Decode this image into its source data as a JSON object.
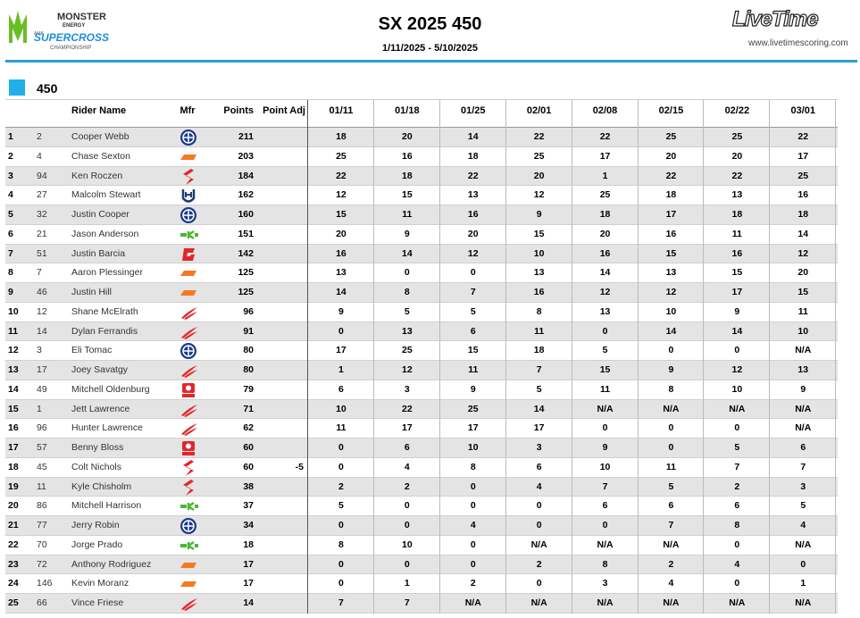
{
  "header": {
    "logo": {
      "brand": "MONSTER",
      "sub": "ENERGY",
      "ama": "AMA",
      "series": "SUPERCROSS",
      "champ": "CHAMPIONSHIP"
    },
    "title": "SX 2025 450",
    "dates": "1/11/2025 - 5/10/2025",
    "provider": "LiveTime",
    "url": "www.livetimescoring.com"
  },
  "class_name": "450",
  "table": {
    "columns": [
      "Rider Name",
      "Mfr",
      "Points",
      "Point Adj",
      "01/11",
      "01/18",
      "01/25",
      "02/01",
      "02/08",
      "02/15",
      "02/22",
      "03/01"
    ],
    "rows": [
      {
        "pos": 1,
        "num": 2,
        "name": "Cooper Webb",
        "points": 211,
        "results": [
          18,
          20,
          14,
          22,
          22,
          25,
          25,
          22
        ]
      },
      {
        "pos": 2,
        "num": 4,
        "name": "Chase Sexton",
        "points": 203,
        "results": [
          25,
          16,
          18,
          25,
          17,
          20,
          20,
          17
        ]
      },
      {
        "pos": 3,
        "num": 94,
        "name": "Ken Roczen",
        "points": 184,
        "results": [
          22,
          18,
          22,
          20,
          1,
          22,
          22,
          25
        ]
      },
      {
        "pos": 4,
        "num": 27,
        "name": "Malcolm Stewart",
        "points": 162,
        "results": [
          12,
          15,
          13,
          12,
          25,
          18,
          13,
          16
        ]
      },
      {
        "pos": 5,
        "num": 32,
        "name": "Justin Cooper",
        "points": 160,
        "results": [
          15,
          11,
          16,
          9,
          18,
          17,
          18,
          18
        ]
      },
      {
        "pos": 6,
        "num": 21,
        "name": "Jason Anderson",
        "points": 151,
        "results": [
          20,
          9,
          20,
          15,
          20,
          16,
          11,
          14
        ]
      },
      {
        "pos": 7,
        "num": 51,
        "name": "Justin Barcia",
        "points": 142,
        "results": [
          16,
          14,
          12,
          10,
          16,
          15,
          16,
          12
        ]
      },
      {
        "pos": 8,
        "num": 7,
        "name": "Aaron Plessinger",
        "points": 125,
        "results": [
          13,
          0,
          0,
          13,
          14,
          13,
          15,
          20
        ]
      },
      {
        "pos": 9,
        "num": 46,
        "name": "Justin Hill",
        "points": 125,
        "results": [
          14,
          8,
          7,
          16,
          12,
          12,
          17,
          15
        ]
      },
      {
        "pos": 10,
        "num": 12,
        "name": "Shane McElrath",
        "points": 96,
        "results": [
          9,
          5,
          5,
          8,
          13,
          10,
          9,
          11
        ]
      },
      {
        "pos": 11,
        "num": 14,
        "name": "Dylan Ferrandis",
        "points": 91,
        "results": [
          0,
          13,
          6,
          11,
          0,
          14,
          14,
          10
        ]
      },
      {
        "pos": 12,
        "num": 3,
        "name": "Eli Tomac",
        "points": 80,
        "results": [
          17,
          25,
          15,
          18,
          5,
          0,
          0,
          "N/A"
        ]
      },
      {
        "pos": 13,
        "num": 17,
        "name": "Joey Savatgy",
        "points": 80,
        "results": [
          1,
          12,
          11,
          7,
          15,
          9,
          12,
          13
        ]
      },
      {
        "pos": 14,
        "num": 49,
        "name": "Mitchell Oldenburg",
        "points": 79,
        "results": [
          6,
          3,
          9,
          5,
          11,
          8,
          10,
          9
        ]
      },
      {
        "pos": 15,
        "num": 1,
        "name": "Jett Lawrence",
        "points": 71,
        "results": [
          10,
          22,
          25,
          14,
          "N/A",
          "N/A",
          "N/A",
          "N/A"
        ]
      },
      {
        "pos": 16,
        "num": 96,
        "name": "Hunter Lawrence",
        "points": 62,
        "results": [
          11,
          17,
          17,
          17,
          0,
          0,
          0,
          "N/A"
        ]
      },
      {
        "pos": 17,
        "num": 57,
        "name": "Benny Bloss",
        "points": 60,
        "results": [
          0,
          6,
          10,
          3,
          9,
          0,
          5,
          6
        ]
      },
      {
        "pos": 18,
        "num": 45,
        "name": "Colt Nichols",
        "points": 60,
        "adj": -5,
        "results": [
          0,
          4,
          8,
          6,
          10,
          11,
          7,
          7
        ]
      },
      {
        "pos": 19,
        "num": 11,
        "name": "Kyle Chisholm",
        "points": 38,
        "results": [
          2,
          2,
          0,
          4,
          7,
          5,
          2,
          3
        ]
      },
      {
        "pos": 20,
        "num": 86,
        "name": "Mitchell Harrison",
        "points": 37,
        "results": [
          5,
          0,
          0,
          0,
          6,
          6,
          6,
          5
        ]
      },
      {
        "pos": 21,
        "num": 77,
        "name": "Jerry Robin",
        "points": 34,
        "results": [
          0,
          0,
          4,
          0,
          0,
          7,
          8,
          4
        ]
      },
      {
        "pos": 22,
        "num": 70,
        "name": "Jorge Prado",
        "points": 18,
        "results": [
          8,
          10,
          0,
          "N/A",
          "N/A",
          "N/A",
          0,
          "N/A"
        ]
      },
      {
        "pos": 23,
        "num": 72,
        "name": "Anthony Rodriguez",
        "points": 17,
        "results": [
          0,
          0,
          0,
          2,
          8,
          2,
          4,
          0
        ]
      },
      {
        "pos": 24,
        "num": 146,
        "name": "Kevin Moranz",
        "points": 17,
        "results": [
          0,
          1,
          2,
          0,
          3,
          4,
          0,
          1
        ]
      },
      {
        "pos": 25,
        "num": 66,
        "name": "Vince Friese",
        "points": 14,
        "results": [
          7,
          7,
          "N/A",
          "N/A",
          "N/A",
          "N/A",
          "N/A",
          "N/A"
        ]
      }
    ]
  }
}
